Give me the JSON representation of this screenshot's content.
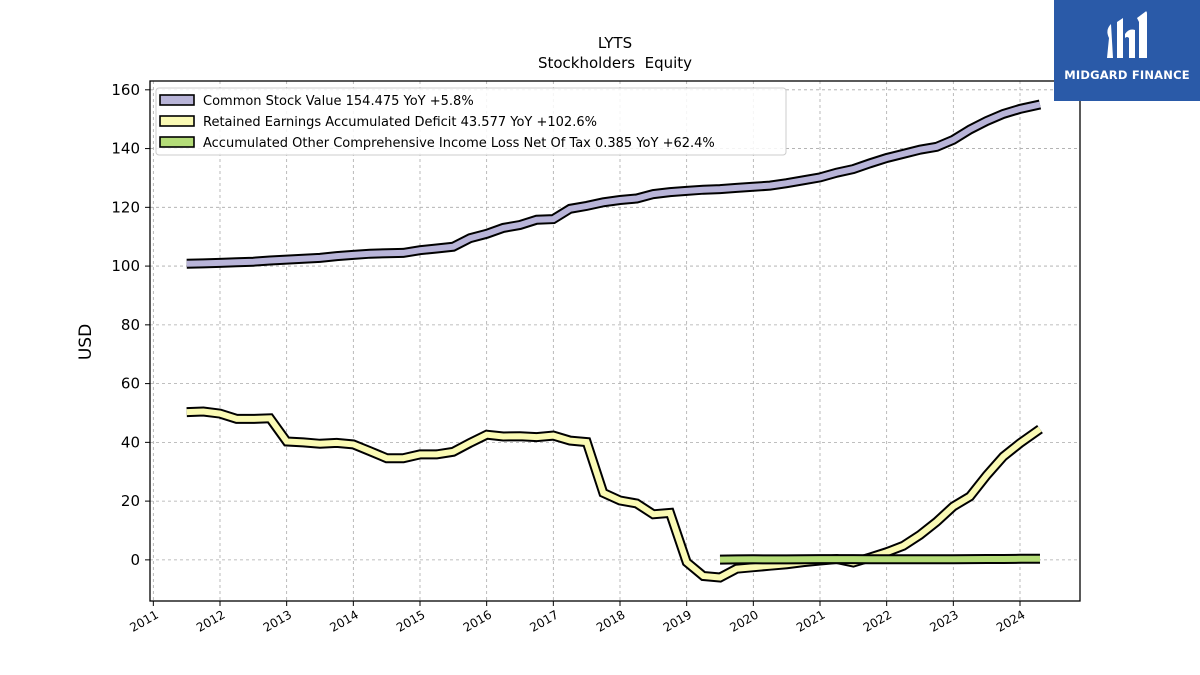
{
  "chart_data": {
    "type": "line",
    "title": "LYTS",
    "subtitle": "Stockholders  Equity",
    "ylabel": "USD",
    "xlabel": "",
    "xlim": [
      2010.95,
      2024.9
    ],
    "ylim": [
      -14,
      163
    ],
    "yticks": [
      0,
      20,
      40,
      60,
      80,
      100,
      120,
      140,
      160
    ],
    "xticks": [
      2011,
      2012,
      2013,
      2014,
      2015,
      2016,
      2017,
      2018,
      2019,
      2020,
      2021,
      2022,
      2023,
      2024
    ],
    "grid": true,
    "legend_position": "top-left",
    "series": [
      {
        "name": "Common Stock Value  154.475 YoY +5.8%",
        "color": "#b8b4d8",
        "x": [
          2011.5,
          2011.75,
          2012.0,
          2012.25,
          2012.5,
          2012.75,
          2013.0,
          2013.25,
          2013.5,
          2013.75,
          2014.0,
          2014.25,
          2014.5,
          2014.75,
          2015.0,
          2015.25,
          2015.5,
          2015.75,
          2016.0,
          2016.25,
          2016.5,
          2016.75,
          2017.0,
          2017.25,
          2017.5,
          2017.75,
          2018.0,
          2018.25,
          2018.5,
          2018.75,
          2019.0,
          2019.25,
          2019.5,
          2019.75,
          2020.0,
          2020.25,
          2020.5,
          2020.75,
          2021.0,
          2021.25,
          2021.5,
          2021.75,
          2022.0,
          2022.25,
          2022.5,
          2022.75,
          2023.0,
          2023.25,
          2023.5,
          2023.75,
          2024.0,
          2024.3
        ],
        "y": [
          100.8,
          100.9,
          101.1,
          101.3,
          101.5,
          101.9,
          102.2,
          102.5,
          102.8,
          103.4,
          103.8,
          104.2,
          104.4,
          104.5,
          105.4,
          106.0,
          106.6,
          109.5,
          111.0,
          113.0,
          114.0,
          115.8,
          116.0,
          119.5,
          120.5,
          121.7,
          122.5,
          123.0,
          124.5,
          125.2,
          125.6,
          126.0,
          126.2,
          126.6,
          127.0,
          127.4,
          128.2,
          129.2,
          130.2,
          131.8,
          133.0,
          135.0,
          136.8,
          138.2,
          139.6,
          140.6,
          143.0,
          146.5,
          149.4,
          151.8,
          153.5,
          155.0
        ]
      },
      {
        "name": "Retained Earnings Accumulated Deficit  43.577 YoY +102.6%",
        "color": "#fafab4",
        "x": [
          2011.5,
          2011.75,
          2012.0,
          2012.25,
          2012.5,
          2012.75,
          2013.0,
          2013.25,
          2013.5,
          2013.75,
          2014.0,
          2014.25,
          2014.5,
          2014.75,
          2015.0,
          2015.25,
          2015.5,
          2015.75,
          2016.0,
          2016.25,
          2016.5,
          2016.75,
          2017.0,
          2017.25,
          2017.5,
          2017.75,
          2018.0,
          2018.25,
          2018.5,
          2018.75,
          2019.0,
          2019.25,
          2019.5,
          2019.75,
          2020.0,
          2020.25,
          2020.5,
          2020.75,
          2021.0,
          2021.25,
          2021.5,
          2021.75,
          2022.0,
          2022.25,
          2022.5,
          2022.75,
          2023.0,
          2023.25,
          2023.5,
          2023.75,
          2024.0,
          2024.3
        ],
        "y": [
          50.3,
          50.5,
          49.8,
          48.0,
          48.0,
          48.2,
          40.3,
          40.0,
          39.5,
          39.8,
          39.3,
          37.0,
          34.6,
          34.6,
          35.9,
          35.9,
          36.8,
          39.8,
          42.6,
          42.0,
          42.1,
          41.8,
          42.3,
          40.6,
          40.1,
          22.8,
          20.2,
          19.2,
          15.5,
          16.0,
          -0.8,
          -5.5,
          -6.0,
          -3.0,
          -2.5,
          -2.0,
          -1.5,
          -0.8,
          -0.2,
          0.3,
          -0.9,
          0.8,
          2.6,
          4.8,
          8.5,
          13.0,
          18.2,
          21.6,
          28.8,
          35.2,
          39.7,
          44.5
        ]
      },
      {
        "name": "Accumulated Other Comprehensive Income Loss Net Of Tax  0.385 YoY +62.4%",
        "color": "#b4dc78",
        "x": [
          2019.5,
          2019.75,
          2020.0,
          2020.25,
          2020.5,
          2020.75,
          2021.0,
          2021.25,
          2021.5,
          2021.75,
          2022.0,
          2022.25,
          2022.5,
          2022.75,
          2023.0,
          2023.25,
          2023.5,
          2023.75,
          2024.0,
          2024.3
        ],
        "y": [
          0.1,
          0.15,
          0.2,
          0.15,
          0.15,
          0.2,
          0.25,
          0.25,
          0.25,
          0.2,
          0.2,
          0.2,
          0.2,
          0.2,
          0.2,
          0.25,
          0.3,
          0.3,
          0.35,
          0.4
        ]
      }
    ]
  },
  "logo": {
    "text": "MIDGARD FINANCE",
    "background": "#2a5aa8"
  }
}
